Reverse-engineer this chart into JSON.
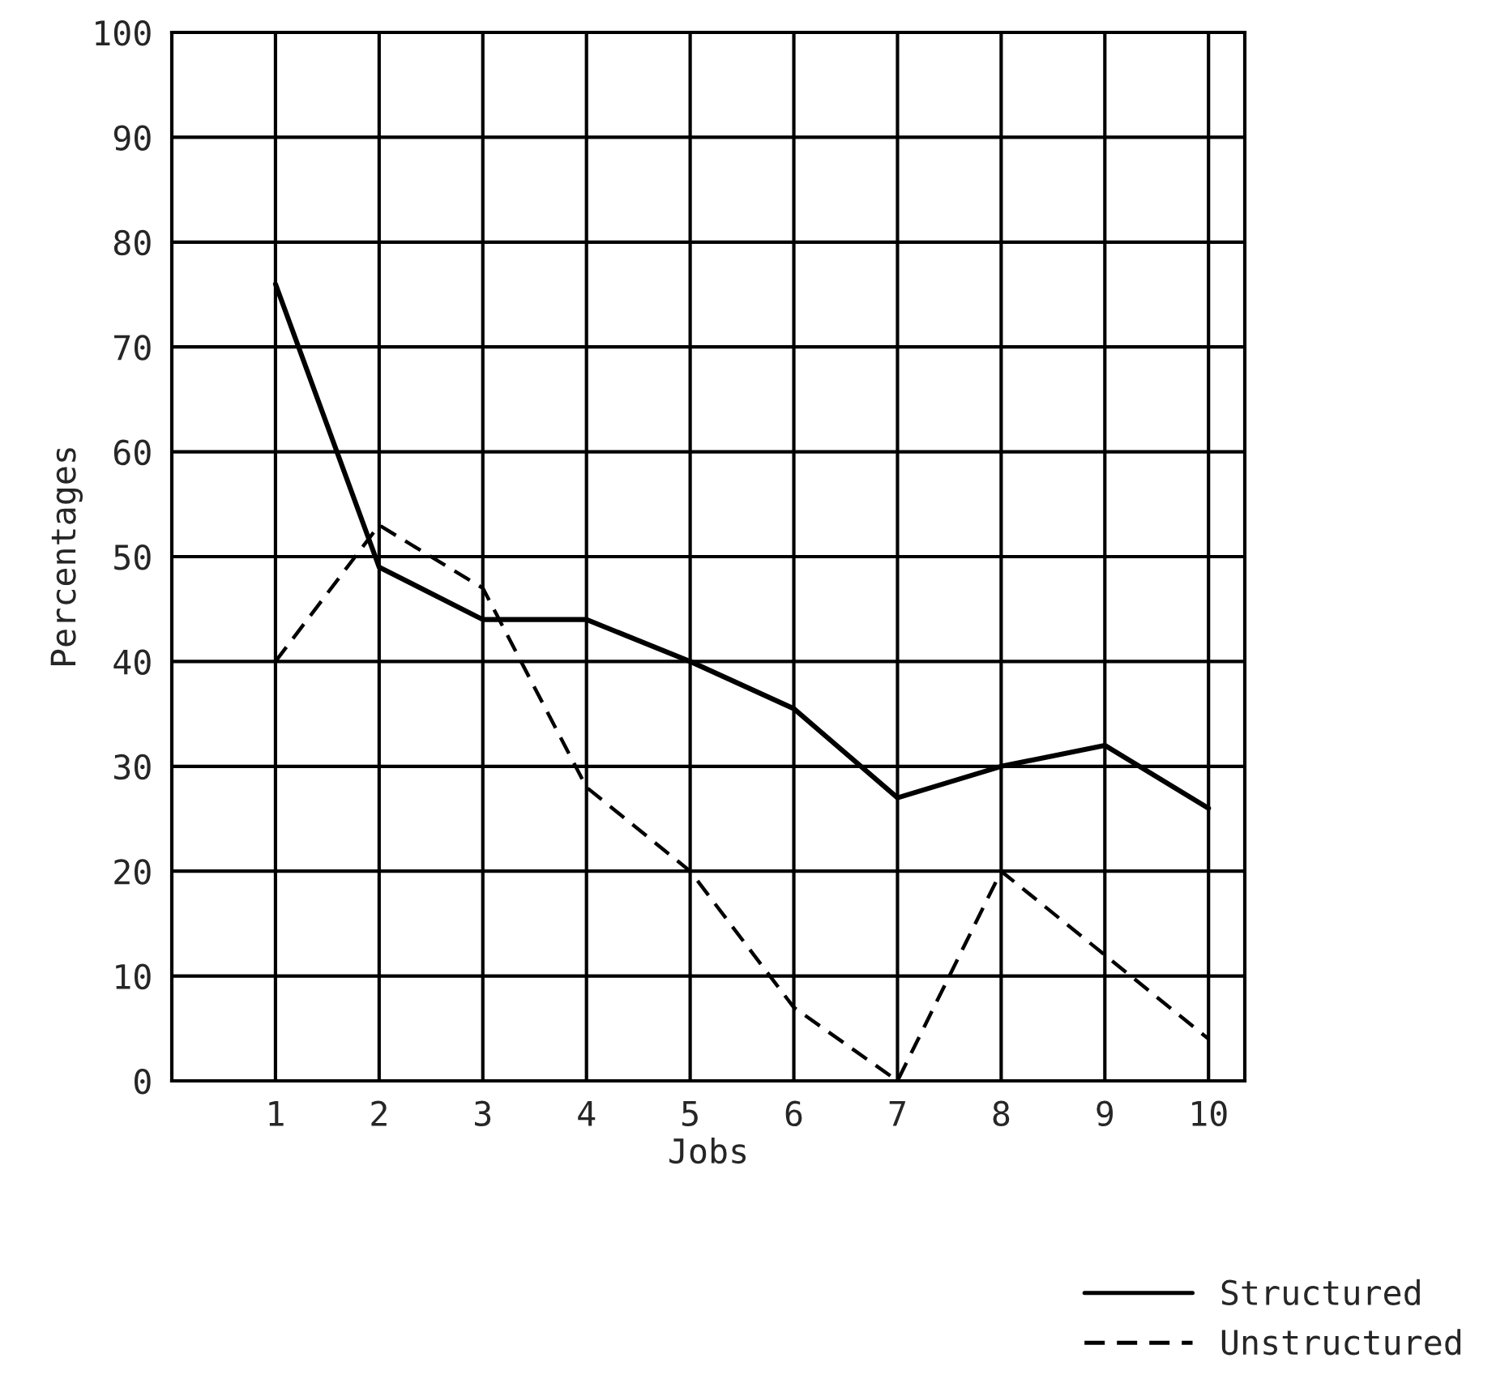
{
  "chart_data": {
    "type": "line",
    "xlabel": "Jobs",
    "ylabel": "Percentages",
    "x": [
      1,
      2,
      3,
      4,
      5,
      6,
      7,
      8,
      9,
      10
    ],
    "series": [
      {
        "name": "Structured",
        "color": "#000000",
        "line_style": "solid",
        "values": [
          76,
          49,
          44,
          44,
          40,
          35.5,
          27,
          30,
          32,
          26
        ]
      },
      {
        "name": "Unstructured",
        "color": "#000000",
        "line_style": "dashed",
        "values": [
          40,
          53,
          47,
          28,
          20,
          7,
          0,
          20,
          12,
          4
        ]
      }
    ],
    "xlim": [
      0,
      10.35
    ],
    "xticks": [
      1,
      2,
      3,
      4,
      5,
      6,
      7,
      8,
      9,
      10
    ],
    "ylim": [
      0,
      100
    ],
    "yticks": [
      0,
      10,
      20,
      30,
      40,
      50,
      60,
      70,
      80,
      90,
      100
    ],
    "grid": true,
    "legend": "bottom right",
    "marker": "none"
  }
}
